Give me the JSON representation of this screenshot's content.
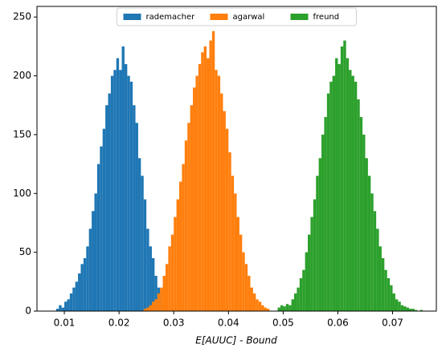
{
  "chart_data": {
    "type": "histogram",
    "xlabel": "E[AUUC] - Bound",
    "xlim": [
      0.005,
      0.078
    ],
    "ylim": [
      0,
      259
    ],
    "xticks": [
      0.01,
      0.02,
      0.03,
      0.04,
      0.05,
      0.06,
      0.07
    ],
    "yticks": [
      0,
      50,
      100,
      150,
      200,
      250
    ],
    "legend": "upper center",
    "series": [
      {
        "name": "rademacher",
        "color": "#1f77b4",
        "bins": [
          0.0085,
          0.009,
          0.0095,
          0.01,
          0.0105,
          0.011,
          0.0115,
          0.012,
          0.0125,
          0.013,
          0.0135,
          0.014,
          0.0145,
          0.015,
          0.0155,
          0.016,
          0.0165,
          0.017,
          0.0175,
          0.018,
          0.0185,
          0.019,
          0.0195,
          0.02,
          0.0205,
          0.021,
          0.0215,
          0.022,
          0.0225,
          0.023,
          0.0235,
          0.024,
          0.0245,
          0.025,
          0.0255,
          0.026,
          0.0265,
          0.027,
          0.0275,
          0.028,
          0.0285
        ],
        "values": [
          2,
          5,
          3,
          8,
          10,
          15,
          20,
          25,
          32,
          40,
          45,
          55,
          70,
          85,
          100,
          125,
          140,
          155,
          175,
          185,
          200,
          205,
          215,
          205,
          225,
          210,
          200,
          195,
          175,
          160,
          130,
          115,
          95,
          70,
          55,
          45,
          30,
          20,
          15,
          8
        ]
      },
      {
        "name": "agarwal",
        "color": "#ff7f0e",
        "bins": [
          0.0245,
          0.025,
          0.0255,
          0.026,
          0.0265,
          0.027,
          0.0275,
          0.028,
          0.0285,
          0.029,
          0.0295,
          0.03,
          0.0305,
          0.031,
          0.0315,
          0.032,
          0.0325,
          0.033,
          0.0335,
          0.034,
          0.0345,
          0.035,
          0.0355,
          0.036,
          0.0365,
          0.037,
          0.0375,
          0.038,
          0.0385,
          0.039,
          0.0395,
          0.04,
          0.0405,
          0.041,
          0.0415,
          0.042,
          0.0425,
          0.043,
          0.0435,
          0.044,
          0.0445,
          0.045,
          0.0455,
          0.046,
          0.0465,
          0.047,
          0.0475
        ],
        "values": [
          2,
          3,
          5,
          8,
          10,
          15,
          20,
          30,
          40,
          55,
          65,
          80,
          95,
          110,
          125,
          145,
          160,
          175,
          190,
          200,
          210,
          220,
          225,
          215,
          230,
          238,
          205,
          200,
          185,
          170,
          155,
          135,
          115,
          100,
          80,
          65,
          50,
          40,
          30,
          20,
          15,
          10,
          8,
          5,
          3,
          2
        ]
      },
      {
        "name": "freund",
        "color": "#2ca02c",
        "bins": [
          0.049,
          0.0495,
          0.05,
          0.0505,
          0.051,
          0.0515,
          0.052,
          0.0525,
          0.053,
          0.0535,
          0.054,
          0.0545,
          0.055,
          0.0555,
          0.056,
          0.0565,
          0.057,
          0.0575,
          0.058,
          0.0585,
          0.059,
          0.0595,
          0.06,
          0.0605,
          0.061,
          0.0615,
          0.062,
          0.0625,
          0.063,
          0.0635,
          0.064,
          0.0645,
          0.065,
          0.0655,
          0.066,
          0.0665,
          0.067,
          0.0675,
          0.068,
          0.0685,
          0.069,
          0.0695,
          0.07,
          0.0705,
          0.071,
          0.0715,
          0.072,
          0.0725,
          0.073,
          0.0735,
          0.074,
          0.0745,
          0.075,
          0.0755
        ],
        "values": [
          3,
          5,
          4,
          6,
          5,
          10,
          15,
          20,
          28,
          35,
          50,
          65,
          80,
          95,
          115,
          130,
          150,
          165,
          185,
          195,
          200,
          215,
          210,
          225,
          230,
          215,
          205,
          200,
          195,
          180,
          165,
          150,
          130,
          115,
          100,
          85,
          70,
          55,
          45,
          35,
          28,
          22,
          15,
          10,
          8,
          5,
          4,
          3,
          2,
          2,
          1,
          0,
          1
        ]
      }
    ]
  }
}
